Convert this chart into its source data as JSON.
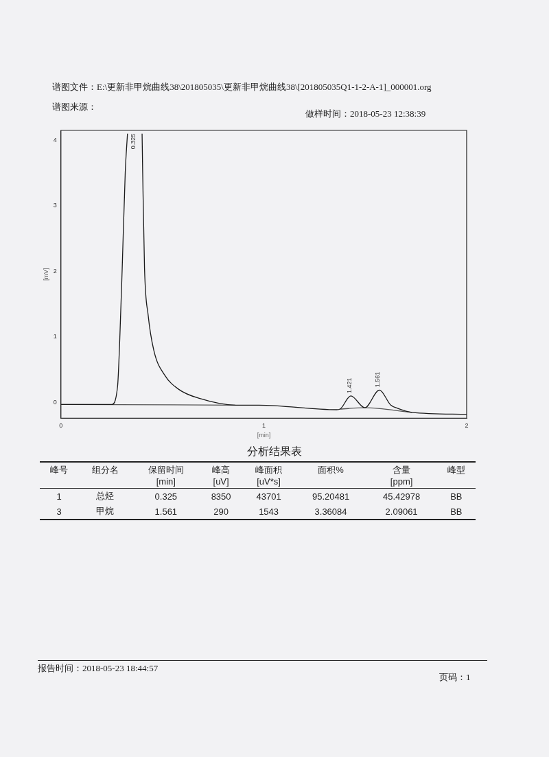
{
  "chart_data": {
    "type": "line",
    "xlabel": "[min]",
    "ylabel": "[mV]",
    "xlim": [
      0,
      2
    ],
    "xticks": [
      0,
      1,
      2
    ],
    "ylim": [
      -0.24,
      4.15
    ],
    "yticks": [
      0,
      1,
      2,
      3,
      4
    ],
    "grid": false,
    "legend": false,
    "marker": "none",
    "line_style": "solid",
    "series": [
      {
        "color": "#1a1a1a",
        "x": [
          0,
          0.25,
          0.279,
          0.29,
          0.302,
          0.317,
          0.328,
          0.36,
          0.4,
          0.403,
          0.412,
          0.43,
          0.459,
          0.511,
          0.581,
          0.685,
          0.86,
          0.976,
          1.359,
          1.376,
          1.429,
          1.498,
          1.57,
          1.626,
          1.661,
          1.73,
          2.0
        ],
        "values": [
          -0.03,
          -0.03,
          0.24,
          0.96,
          2.05,
          3.51,
          4.1,
          null,
          4.1,
          3.51,
          2.05,
          1.33,
          0.78,
          0.42,
          0.2,
          0.06,
          -0.04,
          -0.04,
          -0.11,
          -0.1,
          0.1,
          -0.08,
          0.19,
          -0.04,
          -0.09,
          -0.15,
          -0.18
        ]
      },
      {
        "color": "#555555",
        "x": [
          0,
          0.86,
          0.9,
          1.376,
          1.498,
          1.73
        ],
        "values": [
          -0.03,
          -0.04,
          null,
          -0.1,
          -0.08,
          -0.15
        ]
      }
    ],
    "annotations": [
      "谱图文件：E:\\更新非甲烷曲线38\\201805035\\更新非甲烷曲线38\\[201805035Q1-1-2-A-1]_000001.org",
      "谱图来源：",
      "做样时间：2018-05-23 12:38:39",
      "分析结果表",
      "峰号",
      "组分名",
      "保留时间\n[min]",
      "峰高\n[uV]",
      "峰面积\n[uV*s]",
      "面积%",
      "含量\n[ppm]",
      "峰型",
      "1",
      "总烃",
      "0.325",
      "8350",
      "43701",
      "95.20481",
      "45.42978",
      "BB",
      "3",
      "甲烷",
      "1.561",
      "290",
      "1543",
      "3.36084",
      "2.09061",
      "BB",
      "报告时间：2018-05-23 18:44:57",
      "页码：1",
      {
        "text": "0.325",
        "x": 0.325,
        "y": 4.1
      },
      {
        "text": "1.421",
        "x": 1.421,
        "y": 0.1
      },
      {
        "text": "1.561",
        "x": 1.561,
        "y": 0.19
      }
    ]
  }
}
